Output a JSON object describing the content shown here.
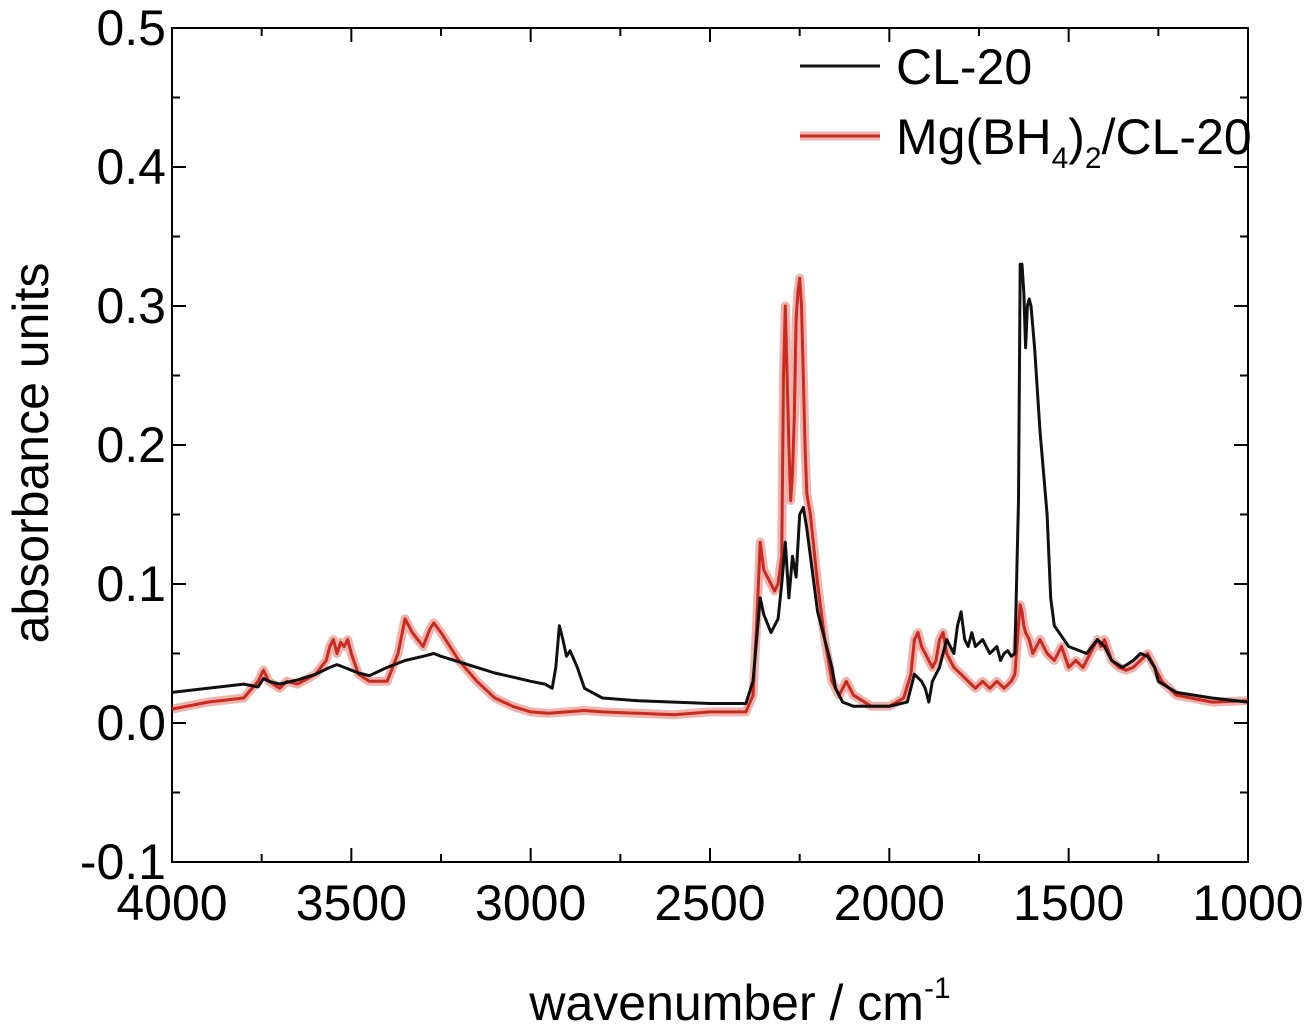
{
  "chart_data": {
    "type": "line",
    "xlabel": "wavenumber / cm",
    "xlabel_superscript": "-1",
    "ylabel": "absorbance units",
    "xlim": [
      4000,
      1000
    ],
    "ylim": [
      -0.1,
      0.5
    ],
    "x_reversed": true,
    "grid": false,
    "legend_position": "top-right",
    "x_ticks": [
      {
        "value": 4000,
        "label": "4000"
      },
      {
        "value": 3500,
        "label": "3500"
      },
      {
        "value": 3000,
        "label": "3000"
      },
      {
        "value": 2500,
        "label": "2500"
      },
      {
        "value": 2000,
        "label": "2000"
      },
      {
        "value": 1500,
        "label": "1500"
      },
      {
        "value": 1000,
        "label": "1000"
      }
    ],
    "y_ticks": [
      {
        "value": -0.1,
        "label": "-0.1"
      },
      {
        "value": 0.0,
        "label": "0.0"
      },
      {
        "value": 0.1,
        "label": "0.1"
      },
      {
        "value": 0.2,
        "label": "0.2"
      },
      {
        "value": 0.3,
        "label": "0.3"
      },
      {
        "value": 0.4,
        "label": "0.4"
      },
      {
        "value": 0.5,
        "label": "0.5"
      }
    ],
    "series": [
      {
        "name": "CL-20",
        "legend_parts": [
          {
            "text": "CL-20",
            "style": "normal"
          }
        ],
        "color": "#111111",
        "x": [
          4000,
          3900,
          3800,
          3760,
          3745,
          3730,
          3700,
          3650,
          3600,
          3560,
          3540,
          3520,
          3500,
          3480,
          3450,
          3400,
          3350,
          3300,
          3270,
          3250,
          3200,
          3150,
          3100,
          3050,
          3000,
          2960,
          2940,
          2930,
          2920,
          2910,
          2900,
          2890,
          2870,
          2850,
          2800,
          2700,
          2600,
          2500,
          2400,
          2380,
          2370,
          2360,
          2350,
          2330,
          2310,
          2300,
          2290,
          2280,
          2270,
          2260,
          2250,
          2240,
          2230,
          2220,
          2210,
          2200,
          2180,
          2160,
          2150,
          2130,
          2100,
          2050,
          2000,
          1950,
          1930,
          1910,
          1900,
          1890,
          1880,
          1860,
          1850,
          1840,
          1820,
          1810,
          1800,
          1790,
          1780,
          1770,
          1760,
          1740,
          1720,
          1700,
          1690,
          1680,
          1670,
          1660,
          1650,
          1640,
          1635,
          1630,
          1625,
          1620,
          1615,
          1610,
          1605,
          1600,
          1595,
          1590,
          1580,
          1560,
          1550,
          1540,
          1500,
          1450,
          1420,
          1400,
          1380,
          1350,
          1320,
          1300,
          1280,
          1260,
          1250,
          1200,
          1100,
          1000
        ],
        "y": [
          0.022,
          0.025,
          0.028,
          0.026,
          0.032,
          0.03,
          0.028,
          0.031,
          0.035,
          0.04,
          0.042,
          0.04,
          0.038,
          0.036,
          0.034,
          0.04,
          0.045,
          0.048,
          0.05,
          0.048,
          0.044,
          0.04,
          0.036,
          0.033,
          0.03,
          0.028,
          0.025,
          0.04,
          0.07,
          0.06,
          0.048,
          0.052,
          0.04,
          0.025,
          0.018,
          0.016,
          0.015,
          0.014,
          0.014,
          0.03,
          0.06,
          0.09,
          0.078,
          0.065,
          0.075,
          0.1,
          0.13,
          0.09,
          0.12,
          0.105,
          0.15,
          0.155,
          0.14,
          0.12,
          0.1,
          0.08,
          0.06,
          0.04,
          0.025,
          0.015,
          0.012,
          0.012,
          0.012,
          0.015,
          0.035,
          0.03,
          0.025,
          0.015,
          0.03,
          0.04,
          0.05,
          0.06,
          0.05,
          0.07,
          0.08,
          0.06,
          0.055,
          0.065,
          0.055,
          0.06,
          0.05,
          0.055,
          0.045,
          0.05,
          0.052,
          0.048,
          0.05,
          0.16,
          0.33,
          0.33,
          0.31,
          0.27,
          0.3,
          0.305,
          0.3,
          0.285,
          0.27,
          0.25,
          0.21,
          0.15,
          0.09,
          0.07,
          0.055,
          0.05,
          0.06,
          0.055,
          0.045,
          0.04,
          0.045,
          0.05,
          0.048,
          0.04,
          0.03,
          0.022,
          0.018,
          0.015
        ]
      },
      {
        "name": "Mg(BH4)2/CL-20",
        "legend_parts": [
          {
            "text": "Mg(BH",
            "style": "normal"
          },
          {
            "text": "4",
            "style": "sub"
          },
          {
            "text": ")",
            "style": "normal"
          },
          {
            "text": "2",
            "style": "sub"
          },
          {
            "text": "/CL-20",
            "style": "normal"
          }
        ],
        "color": "#cc2a1e",
        "x": [
          4000,
          3900,
          3800,
          3760,
          3745,
          3730,
          3700,
          3680,
          3650,
          3600,
          3570,
          3560,
          3550,
          3540,
          3530,
          3520,
          3510,
          3500,
          3480,
          3450,
          3400,
          3370,
          3350,
          3330,
          3300,
          3280,
          3270,
          3250,
          3200,
          3150,
          3100,
          3050,
          3000,
          2950,
          2900,
          2850,
          2800,
          2700,
          2600,
          2500,
          2400,
          2380,
          2370,
          2360,
          2350,
          2330,
          2320,
          2310,
          2300,
          2295,
          2290,
          2285,
          2280,
          2275,
          2270,
          2265,
          2260,
          2255,
          2250,
          2245,
          2240,
          2235,
          2230,
          2220,
          2200,
          2180,
          2160,
          2140,
          2120,
          2100,
          2050,
          2000,
          1960,
          1940,
          1930,
          1920,
          1910,
          1900,
          1880,
          1870,
          1860,
          1850,
          1840,
          1820,
          1800,
          1780,
          1760,
          1740,
          1720,
          1700,
          1680,
          1660,
          1650,
          1640,
          1635,
          1630,
          1625,
          1620,
          1610,
          1600,
          1590,
          1580,
          1560,
          1540,
          1520,
          1500,
          1480,
          1460,
          1440,
          1420,
          1410,
          1400,
          1380,
          1360,
          1340,
          1320,
          1300,
          1280,
          1260,
          1240,
          1200,
          1100,
          1000
        ],
        "y": [
          0.01,
          0.015,
          0.018,
          0.03,
          0.038,
          0.03,
          0.025,
          0.03,
          0.028,
          0.035,
          0.045,
          0.055,
          0.06,
          0.05,
          0.058,
          0.055,
          0.06,
          0.05,
          0.035,
          0.03,
          0.03,
          0.05,
          0.075,
          0.065,
          0.055,
          0.068,
          0.072,
          0.065,
          0.045,
          0.03,
          0.018,
          0.012,
          0.008,
          0.007,
          0.008,
          0.009,
          0.008,
          0.007,
          0.006,
          0.008,
          0.008,
          0.02,
          0.07,
          0.13,
          0.11,
          0.1,
          0.095,
          0.1,
          0.12,
          0.25,
          0.3,
          0.25,
          0.2,
          0.16,
          0.18,
          0.22,
          0.29,
          0.31,
          0.32,
          0.3,
          0.25,
          0.2,
          0.165,
          0.15,
          0.1,
          0.06,
          0.03,
          0.02,
          0.03,
          0.02,
          0.012,
          0.012,
          0.018,
          0.035,
          0.06,
          0.065,
          0.055,
          0.05,
          0.04,
          0.045,
          0.06,
          0.065,
          0.05,
          0.04,
          0.035,
          0.03,
          0.025,
          0.03,
          0.025,
          0.03,
          0.025,
          0.03,
          0.035,
          0.07,
          0.085,
          0.08,
          0.07,
          0.065,
          0.06,
          0.05,
          0.055,
          0.06,
          0.05,
          0.045,
          0.055,
          0.04,
          0.045,
          0.04,
          0.05,
          0.06,
          0.055,
          0.06,
          0.045,
          0.04,
          0.038,
          0.04,
          0.045,
          0.05,
          0.04,
          0.03,
          0.02,
          0.015,
          0.016
        ]
      }
    ]
  }
}
